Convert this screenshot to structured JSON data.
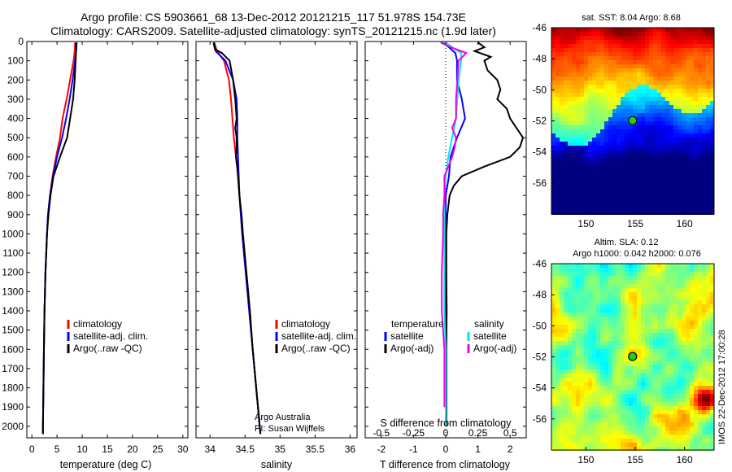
{
  "title": {
    "line1": "Argo profile: CS 5903661_68 13-Dec-2012 20121215_117 51.978S 154.73E",
    "line2": "Climatology: CARS2009. Satellite-adjusted climatology: synTS_20121215.nc (1.9d later)"
  },
  "timestamp": "IMOS 22-Dec-2012 17:00:28",
  "credit": {
    "line1": "Argo Australia",
    "line2": "PI: Susan Wijffels"
  },
  "colors": {
    "climatology": "#ff0000",
    "satellite": "#0000ff",
    "argo": "#000000",
    "cyan": "#00e5ee",
    "magenta": "#ee00ee"
  },
  "chart_data": [
    {
      "type": "line",
      "id": "temperature",
      "xlabel": "temperature (deg C)",
      "ylabel": "",
      "xlim": [
        -1,
        31
      ],
      "ylim": [
        2060,
        0
      ],
      "xticks": [
        0,
        5,
        10,
        15,
        20,
        25,
        30
      ],
      "yticks": [
        0,
        100,
        200,
        300,
        400,
        500,
        600,
        700,
        800,
        900,
        1000,
        1100,
        1200,
        1300,
        1400,
        1500,
        1600,
        1700,
        1800,
        1900,
        2000
      ],
      "legend": [
        "climatology",
        "satellite-adj. clim.",
        "Argo(..raw -QC)"
      ],
      "legend_position": "bottom-right",
      "series": [
        {
          "name": "climatology",
          "color": "#ff0000",
          "depth": [
            5,
            50,
            100,
            200,
            300,
            400,
            500,
            600,
            700,
            800,
            900,
            1000,
            1200,
            1400,
            1600,
            1800,
            2000,
            2040
          ],
          "values": [
            8.6,
            8.5,
            8.3,
            7.6,
            6.9,
            6.1,
            5.6,
            4.8,
            4.1,
            3.6,
            3.2,
            3.0,
            2.7,
            2.5,
            2.4,
            2.3,
            2.2,
            2.2
          ]
        },
        {
          "name": "satellite-adj. clim.",
          "color": "#0000ff",
          "depth": [
            5,
            50,
            100,
            200,
            300,
            400,
            500,
            600,
            700,
            800,
            900,
            1000,
            1200,
            1400,
            1600,
            1800,
            2000,
            2040
          ],
          "values": [
            8.9,
            8.8,
            8.6,
            8.1,
            7.5,
            6.8,
            6.0,
            5.0,
            4.2,
            3.6,
            3.2,
            3.0,
            2.7,
            2.5,
            2.4,
            2.3,
            2.2,
            2.2
          ]
        },
        {
          "name": "Argo(..raw -QC)",
          "color": "#000000",
          "depth": [
            5,
            50,
            100,
            200,
            300,
            400,
            500,
            600,
            700,
            800,
            900,
            1000,
            1200,
            1400,
            1600,
            1800,
            2000,
            2040
          ],
          "values": [
            8.8,
            8.8,
            8.7,
            8.5,
            8.2,
            7.6,
            7.0,
            5.6,
            4.3,
            3.7,
            3.3,
            3.0,
            2.7,
            2.5,
            2.4,
            2.3,
            2.2,
            2.2
          ]
        }
      ]
    },
    {
      "type": "line",
      "id": "salinity",
      "xlabel": "salinity",
      "xlim": [
        33.8,
        36.1
      ],
      "ylim": [
        2060,
        0
      ],
      "xticks": [
        34,
        34.5,
        35,
        35.5,
        36
      ],
      "legend": [
        "climatology",
        "satellite-adj. clim.",
        "Argo(..raw -QC)"
      ],
      "legend_position": "bottom-right",
      "series": [
        {
          "name": "climatology",
          "color": "#ff0000",
          "depth": [
            5,
            50,
            100,
            200,
            300,
            400,
            500,
            600,
            700,
            800,
            900,
            1000,
            1200,
            1400,
            1600,
            1800,
            2000,
            2040
          ],
          "values": [
            34.06,
            34.1,
            34.2,
            34.27,
            34.3,
            34.32,
            34.34,
            34.37,
            34.4,
            34.42,
            34.44,
            34.46,
            34.51,
            34.56,
            34.61,
            34.66,
            34.71,
            34.72
          ]
        },
        {
          "name": "satellite-adj. clim.",
          "color": "#0000ff",
          "depth": [
            5,
            50,
            100,
            200,
            300,
            400,
            500,
            600,
            700,
            800,
            900,
            1000,
            1200,
            1400,
            1600,
            1800,
            2000,
            2040
          ],
          "values": [
            34.06,
            34.08,
            34.22,
            34.33,
            34.38,
            34.39,
            34.39,
            34.4,
            34.41,
            34.42,
            34.44,
            34.46,
            34.51,
            34.56,
            34.61,
            34.66,
            34.71,
            34.72
          ]
        },
        {
          "name": "Argo(..raw -QC)",
          "color": "#000000",
          "depth": [
            5,
            40,
            60,
            100,
            200,
            300,
            400,
            450,
            500,
            550,
            600,
            650,
            700,
            750,
            800,
            900,
            1000,
            1200,
            1400,
            1600,
            1800,
            2000,
            2040
          ],
          "values": [
            34.05,
            34.07,
            34.17,
            34.28,
            34.33,
            34.36,
            34.38,
            34.36,
            34.38,
            34.38,
            34.37,
            34.39,
            34.4,
            34.41,
            34.42,
            34.45,
            34.47,
            34.52,
            34.57,
            34.61,
            34.66,
            34.71,
            34.72
          ]
        }
      ]
    },
    {
      "type": "line",
      "id": "differences",
      "xlabel": "T difference from climatology",
      "xlabel_top": "S difference from climatology",
      "xlim": [
        -2.5,
        2.5
      ],
      "ylim": [
        2060,
        0
      ],
      "xticks": [
        -2,
        -1,
        0,
        1,
        2
      ],
      "top_ticks": [
        "-0.5",
        "-0.25",
        "0",
        "0.25",
        "0.5"
      ],
      "legend_temperature": {
        "heading": "temperature",
        "entries": [
          "satellite",
          "Argo(-adj)"
        ]
      },
      "legend_salinity": {
        "heading": "salinity",
        "entries": [
          "satellite",
          "Argo(-adj)"
        ]
      },
      "series": [
        {
          "name": "temperature satellite",
          "color": "#0000ff",
          "depth": [
            5,
            30,
            60,
            100,
            200,
            300,
            400,
            500,
            600,
            700,
            800,
            900,
            1000,
            1200,
            1400,
            1600,
            1800,
            2000
          ],
          "values": [
            -0.1,
            0.1,
            0.3,
            0.35,
            0.35,
            0.5,
            0.6,
            0.35,
            0.15,
            0.1,
            0.0,
            0.0,
            0.0,
            0.0,
            0.0,
            0.0,
            0.0,
            0.0
          ]
        },
        {
          "name": "temperature Argo(-adj)",
          "color": "#000000",
          "depth": [
            5,
            30,
            50,
            80,
            100,
            150,
            200,
            250,
            300,
            350,
            400,
            450,
            500,
            550,
            600,
            650,
            700,
            750,
            800,
            900,
            1000,
            1200,
            1400,
            1600,
            1800,
            2000
          ],
          "values": [
            1.0,
            1.2,
            0.9,
            1.4,
            1.2,
            1.3,
            1.6,
            1.7,
            1.6,
            1.9,
            2.0,
            2.2,
            2.4,
            2.3,
            2.0,
            1.2,
            0.5,
            0.25,
            0.12,
            0.05,
            0.02,
            0.02,
            0.03,
            0.02,
            0.02,
            0.02
          ]
        },
        {
          "name": "salinity satellite",
          "color": "#00e5ee",
          "depth": [
            5,
            30,
            60,
            100,
            200,
            300,
            400,
            500,
            600,
            700,
            800,
            900,
            1000,
            1200,
            1400,
            1600,
            1800,
            2000
          ],
          "values": [
            0.0,
            0.05,
            0.12,
            0.12,
            0.1,
            0.09,
            0.08,
            0.05,
            0.02,
            0.0,
            -0.01,
            -0.01,
            -0.01,
            -0.01,
            -0.01,
            0.0,
            0.0,
            0.0
          ]
        },
        {
          "name": "salinity Argo(-adj)",
          "color": "#ee00ee",
          "depth": [
            5,
            30,
            60,
            100,
            200,
            300,
            400,
            450,
            500,
            550,
            600,
            650,
            700,
            800,
            900,
            1000,
            1200,
            1400,
            1600,
            1800,
            1900
          ],
          "values": [
            -0.04,
            0.04,
            0.16,
            0.1,
            0.09,
            0.08,
            0.08,
            0.05,
            0.08,
            0.07,
            0.05,
            0.02,
            -0.01,
            -0.01,
            -0.02,
            -0.02,
            -0.03,
            -0.03,
            -0.01,
            -0.01,
            -0.01
          ]
        }
      ]
    },
    {
      "type": "heatmap",
      "id": "sst_map",
      "title": "sat. SST: 8.04  Argo: 8.68",
      "xlim": [
        146.5,
        163
      ],
      "ylim": [
        -58,
        -46
      ],
      "xticks": [
        150,
        155,
        160
      ],
      "yticks": [
        -46,
        -48,
        -50,
        -52,
        -54,
        -56
      ],
      "marker": {
        "lon": 154.73,
        "lat": -51.978
      }
    },
    {
      "type": "heatmap",
      "id": "sla_map",
      "title_line1": "Altim. SLA: 0.12",
      "title_line2": "Argo h1000: 0.042 h2000: 0.076",
      "xlim": [
        146.5,
        163
      ],
      "ylim": [
        -58,
        -46
      ],
      "xticks": [
        150,
        155,
        160
      ],
      "yticks": [
        -46,
        -48,
        -50,
        -52,
        -54,
        -56
      ],
      "marker": {
        "lon": 154.73,
        "lat": -51.978
      }
    }
  ]
}
